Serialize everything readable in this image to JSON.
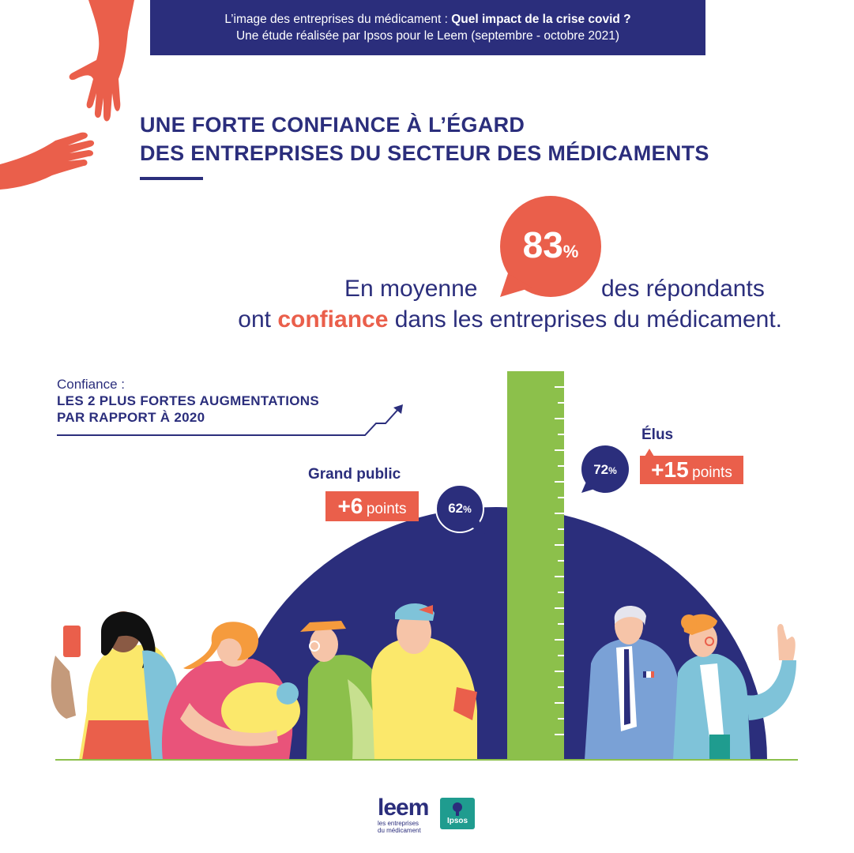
{
  "banner": {
    "line1_pre": "L’image des entreprises du médicament : ",
    "line1_bold": "Quel impact de la crise covid ?",
    "line2": "Une étude réalisée par Ipsos pour le Leem (septembre - octobre 2021)"
  },
  "title": {
    "line1": "UNE FORTE CONFIANCE À L’ÉGARD",
    "line2": "DES ENTREPRISES DU SECTEUR DES MÉDICAMENTS"
  },
  "headline": {
    "value": "83",
    "unit": "%",
    "pre": "En moyenne",
    "post": "des répondants",
    "line2_pre": "ont",
    "line2_em": "confiance",
    "line2_post": "dans les entreprises du médicament."
  },
  "increase_box": {
    "label": "Confiance :",
    "caps_line1": "LES 2 PLUS FORTES AUGMENTATIONS",
    "caps_line2": "PAR RAPPORT À 2020"
  },
  "groups": [
    {
      "name": "Grand public",
      "value": "62",
      "unit": "%",
      "delta": "+6",
      "delta_unit": "points"
    },
    {
      "name": "Élus",
      "value": "72",
      "unit": "%",
      "delta": "+15",
      "delta_unit": "points"
    }
  ],
  "logos": {
    "leem": "leem",
    "leem_sub1": "les entreprises",
    "leem_sub2": "du médicament",
    "ipsos": "Ipsos"
  },
  "colors": {
    "navy": "#2b2e7c",
    "coral": "#ea5f4b",
    "green": "#8cc04b",
    "teal": "#1f9c8f"
  }
}
